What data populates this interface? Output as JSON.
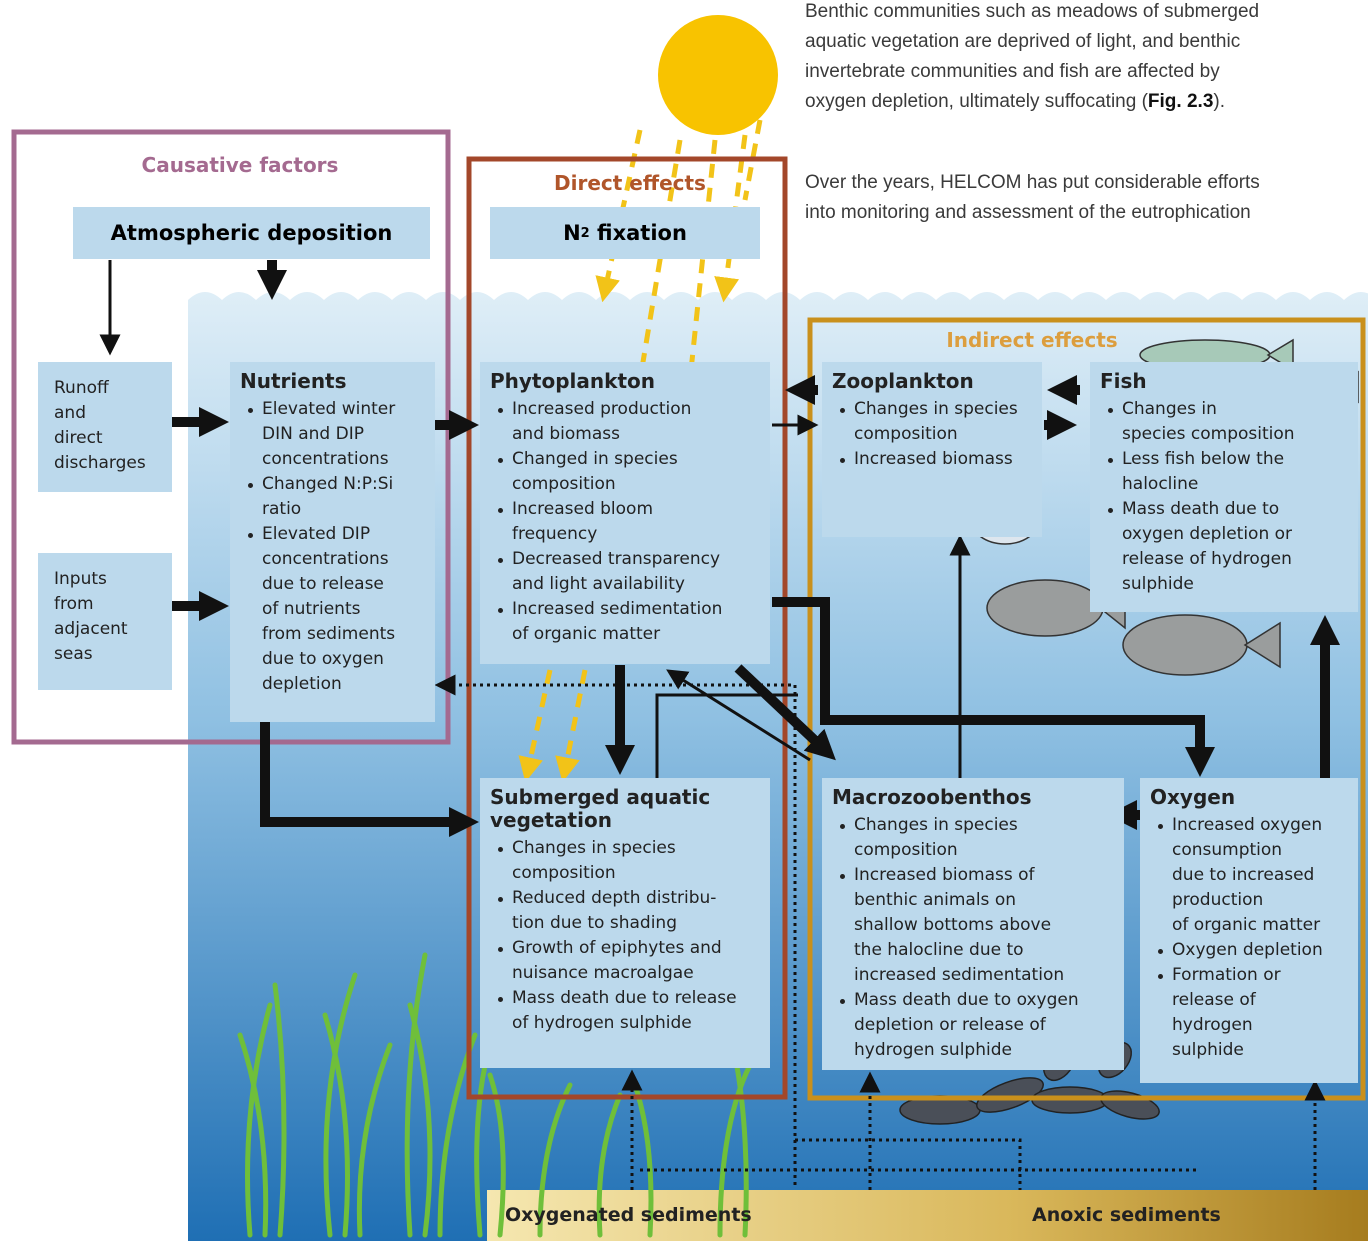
{
  "text": {
    "paragraph1": {
      "lines": [
        "Benthic communities such as meadows of submerged",
        "aquatic vegetation are deprived of light, and benthic",
        "invertebrate communities and fish are affected by"
      ],
      "last": "oxygen depletion, ultimately suffocating (",
      "ref": "Fig. 2.3",
      "end": ")."
    },
    "paragraph2": {
      "lines": [
        "Over the years, HELCOM has put considerable efforts",
        "into monitoring and assessment of the eutrophication"
      ]
    }
  },
  "groups": {
    "causative": "Causative factors",
    "direct": "Direct effects",
    "indirect": "Indirect effects"
  },
  "atmospheric": "Atmospheric deposition",
  "fixation": {
    "base": "N",
    "sub": "2",
    "rest": " fixation"
  },
  "sources": [
    {
      "lines": [
        "Runoff",
        "and",
        "direct",
        "discharges"
      ]
    },
    {
      "lines": [
        "Inputs",
        "from",
        "adjacent",
        "seas"
      ]
    }
  ],
  "boxes": [
    {
      "title": [
        "Nutrients"
      ],
      "bullets": [
        [
          "Elevated winter",
          "DIN and DIP",
          "concentrations"
        ],
        [
          "Changed N:P:Si",
          "ratio"
        ],
        [
          "Elevated DIP",
          "concentrations",
          "due to release",
          "of nutrients",
          "from sediments",
          "due to oxygen",
          "depletion"
        ]
      ]
    },
    {
      "title": [
        "Phytoplankton"
      ],
      "bullets": [
        [
          "Increased production",
          "and biomass"
        ],
        [
          "Changed in species",
          "composition"
        ],
        [
          "Increased bloom",
          "frequency"
        ],
        [
          "Decreased transparency",
          "and light availability"
        ],
        [
          "Increased sedimentation",
          "of organic matter"
        ]
      ]
    },
    {
      "title": [
        "Zooplankton"
      ],
      "bullets": [
        [
          "Changes in species",
          "composition"
        ],
        [
          "Increased biomass"
        ]
      ]
    },
    {
      "title": [
        "Fish"
      ],
      "bullets": [
        [
          "Changes in",
          "species composition"
        ],
        [
          "Less fish below the",
          "halocline"
        ],
        [
          "Mass death due to",
          "oxygen depletion or",
          "release of hydrogen",
          "sulphide"
        ]
      ]
    },
    {
      "title": [
        "Submerged aquatic",
        "vegetation"
      ],
      "bullets": [
        [
          "Changes in species",
          "composition"
        ],
        [
          "Reduced depth distribu-",
          "tion due to shading"
        ],
        [
          "Growth of epiphytes and",
          "nuisance macroalgae"
        ],
        [
          "Mass death due to release",
          "of hydrogen sulphide"
        ]
      ]
    },
    {
      "title": [
        "Macrozoobenthos"
      ],
      "bullets": [
        [
          "Changes in species",
          "composition"
        ],
        [
          "Increased biomass of",
          "benthic animals on",
          "shallow bottoms above",
          "the halocline due to",
          "increased sedimentation"
        ],
        [
          "Mass death due to oxygen",
          "depletion or release of",
          "hydrogen sulphide"
        ]
      ]
    },
    {
      "title": [
        "Oxygen"
      ],
      "bullets": [
        [
          "Increased oxygen",
          "consumption",
          "due to increased",
          "production",
          "of organic matter"
        ],
        [
          "Oxygen depletion"
        ],
        [
          "Formation or",
          "release of",
          "hydrogen",
          "sulphide"
        ]
      ]
    }
  ],
  "sediments": [
    "Oxygenated sediments",
    "Anoxic sediments"
  ]
}
